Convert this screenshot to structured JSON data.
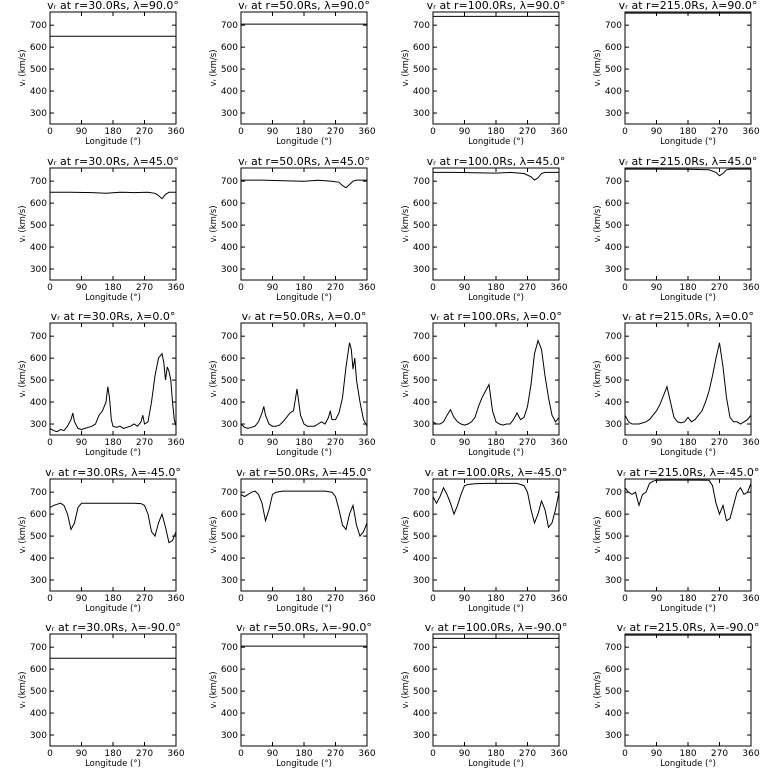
{
  "common": {
    "xlabel": "Longitude (°)",
    "ylabel": "vᵣ (km/s)",
    "xticks": [
      0,
      90,
      180,
      270,
      360
    ],
    "yticks": [
      300,
      400,
      500,
      600,
      700
    ],
    "xlim": [
      0,
      360
    ],
    "ylim": [
      250,
      760
    ]
  },
  "chart_data": [
    {
      "type": "line",
      "title": "vᵣ at r=30.0Rs, λ=90.0°",
      "xlabel": "Longitude (°)",
      "ylabel": "vᵣ (km/s)",
      "xlim": [
        0,
        360
      ],
      "ylim": [
        250,
        760
      ],
      "x": [
        0,
        360
      ],
      "y": [
        650,
        650
      ]
    },
    {
      "type": "line",
      "title": "vᵣ at r=50.0Rs, λ=90.0°",
      "xlabel": "Longitude (°)",
      "ylabel": "vᵣ (km/s)",
      "xlim": [
        0,
        360
      ],
      "ylim": [
        250,
        760
      ],
      "x": [
        0,
        360
      ],
      "y": [
        705,
        705
      ]
    },
    {
      "type": "line",
      "title": "vᵣ at r=100.0Rs, λ=90.0°",
      "xlabel": "Longitude (°)",
      "ylabel": "vᵣ (km/s)",
      "xlim": [
        0,
        360
      ],
      "ylim": [
        250,
        760
      ],
      "x": [
        0,
        360
      ],
      "y": [
        740,
        740
      ]
    },
    {
      "type": "line",
      "title": "vᵣ at r=215.0Rs, λ=90.0°",
      "xlabel": "Longitude (°)",
      "ylabel": "vᵣ (km/s)",
      "xlim": [
        0,
        360
      ],
      "ylim": [
        250,
        760
      ],
      "x": [
        0,
        360
      ],
      "y": [
        755,
        755
      ]
    },
    {
      "type": "line",
      "title": "vᵣ at r=30.0Rs, λ=45.0°",
      "xlabel": "Longitude (°)",
      "ylabel": "vᵣ (km/s)",
      "xlim": [
        0,
        360
      ],
      "ylim": [
        250,
        760
      ],
      "x": [
        0,
        60,
        120,
        160,
        200,
        240,
        280,
        300,
        310,
        320,
        330,
        340,
        360
      ],
      "y": [
        650,
        650,
        648,
        645,
        650,
        648,
        650,
        645,
        635,
        620,
        640,
        650,
        650
      ]
    },
    {
      "type": "line",
      "title": "vᵣ at r=50.0Rs, λ=45.0°",
      "xlabel": "Longitude (°)",
      "ylabel": "vᵣ (km/s)",
      "xlim": [
        0,
        360
      ],
      "ylim": [
        250,
        760
      ],
      "x": [
        0,
        60,
        120,
        180,
        220,
        260,
        280,
        290,
        300,
        310,
        320,
        330,
        360
      ],
      "y": [
        705,
        705,
        702,
        700,
        704,
        700,
        695,
        680,
        670,
        685,
        700,
        705,
        705
      ]
    },
    {
      "type": "line",
      "title": "vᵣ at r=100.0Rs, λ=45.0°",
      "xlabel": "Longitude (°)",
      "ylabel": "vᵣ (km/s)",
      "xlim": [
        0,
        360
      ],
      "ylim": [
        250,
        760
      ],
      "x": [
        0,
        60,
        120,
        180,
        220,
        260,
        280,
        290,
        300,
        310,
        320,
        360
      ],
      "y": [
        740,
        740,
        738,
        737,
        740,
        735,
        720,
        705,
        715,
        735,
        740,
        740
      ]
    },
    {
      "type": "line",
      "title": "vᵣ at r=215.0Rs, λ=45.0°",
      "xlabel": "Longitude (°)",
      "ylabel": "vᵣ (km/s)",
      "xlim": [
        0,
        360
      ],
      "ylim": [
        250,
        760
      ],
      "x": [
        0,
        90,
        180,
        240,
        260,
        270,
        280,
        290,
        300,
        360
      ],
      "y": [
        755,
        755,
        754,
        752,
        740,
        725,
        735,
        752,
        755,
        755
      ]
    },
    {
      "type": "line",
      "title": "vᵣ at r=30.0Rs, λ=0.0°",
      "xlabel": "Longitude (°)",
      "ylabel": "vᵣ (km/s)",
      "xlim": [
        0,
        360
      ],
      "ylim": [
        250,
        760
      ],
      "x": [
        0,
        10,
        20,
        30,
        40,
        50,
        60,
        65,
        70,
        80,
        90,
        100,
        110,
        120,
        130,
        140,
        150,
        160,
        165,
        170,
        175,
        180,
        190,
        200,
        210,
        220,
        230,
        240,
        250,
        260,
        265,
        270,
        280,
        290,
        300,
        310,
        320,
        325,
        330,
        335,
        340,
        345,
        350,
        355,
        360
      ],
      "y": [
        280,
        270,
        265,
        275,
        270,
        290,
        320,
        350,
        310,
        280,
        275,
        280,
        285,
        290,
        300,
        340,
        360,
        400,
        470,
        420,
        320,
        290,
        285,
        290,
        280,
        285,
        290,
        300,
        290,
        310,
        340,
        300,
        310,
        400,
        520,
        600,
        620,
        580,
        500,
        560,
        540,
        500,
        400,
        320,
        290
      ]
    },
    {
      "type": "line",
      "title": "vᵣ at r=50.0Rs, λ=0.0°",
      "xlabel": "Longitude (°)",
      "ylabel": "vᵣ (km/s)",
      "xlim": [
        0,
        360
      ],
      "ylim": [
        250,
        760
      ],
      "x": [
        0,
        10,
        20,
        30,
        40,
        50,
        60,
        65,
        70,
        80,
        90,
        100,
        110,
        120,
        130,
        140,
        150,
        160,
        170,
        180,
        190,
        200,
        210,
        220,
        230,
        240,
        250,
        255,
        260,
        270,
        280,
        290,
        300,
        310,
        315,
        320,
        325,
        330,
        340,
        350,
        360
      ],
      "y": [
        300,
        285,
        280,
        285,
        290,
        310,
        350,
        380,
        340,
        300,
        290,
        290,
        295,
        310,
        330,
        350,
        360,
        460,
        340,
        300,
        290,
        290,
        290,
        300,
        310,
        300,
        330,
        360,
        320,
        320,
        350,
        420,
        560,
        670,
        640,
        550,
        600,
        500,
        400,
        320,
        290
      ]
    },
    {
      "type": "line",
      "title": "vᵣ at r=100.0Rs, λ=0.0°",
      "xlabel": "Longitude (°)",
      "ylabel": "vᵣ (km/s)",
      "xlim": [
        0,
        360
      ],
      "ylim": [
        250,
        760
      ],
      "x": [
        0,
        10,
        20,
        30,
        40,
        50,
        60,
        70,
        80,
        90,
        100,
        110,
        120,
        130,
        140,
        150,
        160,
        170,
        180,
        190,
        200,
        210,
        220,
        230,
        240,
        250,
        260,
        270,
        280,
        290,
        300,
        310,
        320,
        330,
        340,
        350,
        360
      ],
      "y": [
        310,
        300,
        300,
        310,
        340,
        365,
        330,
        310,
        300,
        295,
        300,
        310,
        330,
        380,
        420,
        450,
        480,
        360,
        310,
        300,
        295,
        300,
        300,
        320,
        350,
        320,
        330,
        380,
        480,
        620,
        680,
        640,
        520,
        420,
        340,
        310,
        330
      ]
    },
    {
      "type": "line",
      "title": "vᵣ at r=215.0Rs, λ=0.0°",
      "xlabel": "Longitude (°)",
      "ylabel": "vᵣ (km/s)",
      "xlim": [
        0,
        360
      ],
      "ylim": [
        250,
        760
      ],
      "x": [
        0,
        10,
        20,
        30,
        40,
        50,
        60,
        70,
        80,
        90,
        100,
        110,
        120,
        130,
        140,
        150,
        160,
        170,
        180,
        190,
        200,
        210,
        220,
        230,
        240,
        250,
        260,
        270,
        280,
        290,
        300,
        310,
        320,
        330,
        340,
        350,
        360
      ],
      "y": [
        340,
        310,
        300,
        300,
        300,
        305,
        310,
        320,
        340,
        360,
        390,
        430,
        470,
        400,
        330,
        310,
        305,
        310,
        330,
        310,
        320,
        340,
        360,
        400,
        450,
        520,
        600,
        670,
        560,
        420,
        330,
        310,
        310,
        300,
        310,
        320,
        340
      ]
    },
    {
      "type": "line",
      "title": "vᵣ at r=30.0Rs, λ=-45.0°",
      "xlabel": "Longitude (°)",
      "ylabel": "vᵣ (km/s)",
      "xlim": [
        0,
        360
      ],
      "ylim": [
        250,
        760
      ],
      "x": [
        0,
        10,
        20,
        30,
        40,
        50,
        60,
        70,
        80,
        90,
        100,
        110,
        120,
        150,
        180,
        210,
        240,
        260,
        270,
        280,
        290,
        300,
        310,
        320,
        330,
        340,
        350,
        360
      ],
      "y": [
        630,
        640,
        645,
        650,
        640,
        600,
        530,
        560,
        630,
        650,
        650,
        650,
        650,
        650,
        650,
        650,
        650,
        648,
        640,
        600,
        520,
        500,
        560,
        600,
        540,
        470,
        480,
        520
      ]
    },
    {
      "type": "line",
      "title": "vᵣ at r=50.0Rs, λ=-45.0°",
      "xlabel": "Longitude (°)",
      "ylabel": "vᵣ (km/s)",
      "xlim": [
        0,
        360
      ],
      "ylim": [
        250,
        760
      ],
      "x": [
        0,
        10,
        20,
        30,
        40,
        50,
        60,
        70,
        80,
        90,
        100,
        120,
        150,
        180,
        210,
        240,
        260,
        270,
        280,
        290,
        300,
        310,
        320,
        330,
        340,
        350,
        360
      ],
      "y": [
        690,
        680,
        690,
        700,
        705,
        690,
        650,
        570,
        620,
        690,
        700,
        705,
        705,
        705,
        705,
        705,
        700,
        680,
        620,
        550,
        530,
        600,
        640,
        550,
        500,
        520,
        560
      ]
    },
    {
      "type": "line",
      "title": "vᵣ at r=100.0Rs, λ=-45.0°",
      "xlabel": "Longitude (°)",
      "ylabel": "vᵣ (km/s)",
      "xlim": [
        0,
        360
      ],
      "ylim": [
        250,
        760
      ],
      "x": [
        0,
        10,
        20,
        30,
        40,
        50,
        60,
        70,
        80,
        90,
        100,
        120,
        150,
        180,
        210,
        240,
        260,
        270,
        280,
        290,
        300,
        310,
        320,
        330,
        340,
        350,
        360
      ],
      "y": [
        680,
        650,
        680,
        720,
        690,
        650,
        600,
        640,
        690,
        730,
        735,
        738,
        740,
        740,
        740,
        740,
        730,
        700,
        620,
        560,
        600,
        660,
        620,
        540,
        560,
        620,
        700
      ]
    },
    {
      "type": "line",
      "title": "vᵣ at r=215.0Rs, λ=-45.0°",
      "xlabel": "Longitude (°)",
      "ylabel": "vᵣ (km/s)",
      "xlim": [
        0,
        360
      ],
      "ylim": [
        250,
        760
      ],
      "x": [
        0,
        10,
        20,
        30,
        40,
        50,
        60,
        70,
        80,
        90,
        120,
        150,
        180,
        210,
        240,
        250,
        260,
        270,
        280,
        290,
        300,
        310,
        320,
        330,
        340,
        350,
        360
      ],
      "y": [
        720,
        700,
        690,
        700,
        640,
        690,
        700,
        740,
        750,
        754,
        755,
        755,
        755,
        755,
        754,
        730,
        650,
        600,
        640,
        570,
        580,
        640,
        700,
        720,
        690,
        700,
        740
      ]
    },
    {
      "type": "line",
      "title": "vᵣ at r=30.0Rs, λ=-90.0°",
      "xlabel": "Longitude (°)",
      "ylabel": "vᵣ (km/s)",
      "xlim": [
        0,
        360
      ],
      "ylim": [
        250,
        760
      ],
      "x": [
        0,
        360
      ],
      "y": [
        650,
        650
      ]
    },
    {
      "type": "line",
      "title": "vᵣ at r=50.0Rs, λ=-90.0°",
      "xlabel": "Longitude (°)",
      "ylabel": "vᵣ (km/s)",
      "xlim": [
        0,
        360
      ],
      "ylim": [
        250,
        760
      ],
      "x": [
        0,
        360
      ],
      "y": [
        705,
        705
      ]
    },
    {
      "type": "line",
      "title": "vᵣ at r=100.0Rs, λ=-90.0°",
      "xlabel": "Longitude (°)",
      "ylabel": "vᵣ (km/s)",
      "xlim": [
        0,
        360
      ],
      "ylim": [
        250,
        760
      ],
      "x": [
        0,
        360
      ],
      "y": [
        740,
        740
      ]
    },
    {
      "type": "line",
      "title": "vᵣ at r=215.0Rs, λ=-90.0°",
      "xlabel": "Longitude (°)",
      "ylabel": "vᵣ (km/s)",
      "xlim": [
        0,
        360
      ],
      "ylim": [
        250,
        760
      ],
      "x": [
        0,
        360
      ],
      "y": [
        755,
        755
      ]
    }
  ]
}
